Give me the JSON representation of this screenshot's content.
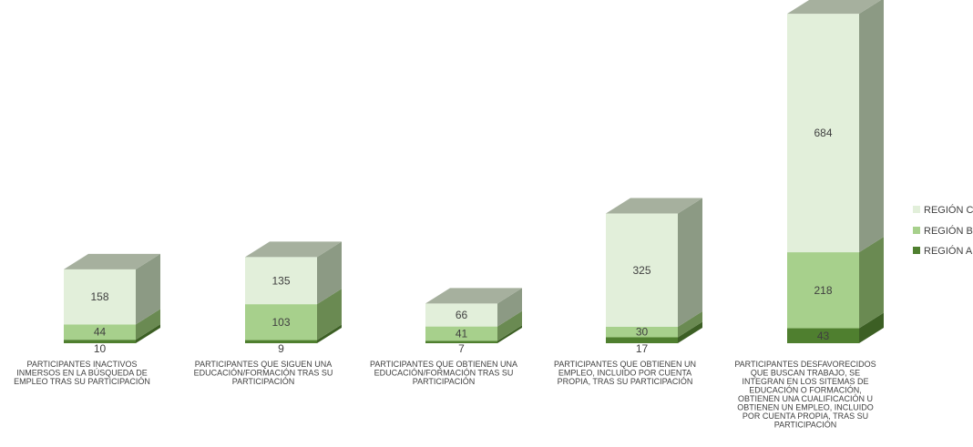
{
  "chart_data": {
    "type": "bar",
    "stacked": true,
    "style": "3d-column",
    "title": "",
    "xlabel": "",
    "ylabel": "",
    "grid": false,
    "legend_position": "right",
    "categories": [
      "PARTICIPANTES INACTIVOS INMERSOS EN LA BÚSQUEDA DE EMPLEO TRAS SU PARTICIPACIÓN",
      "PARTICIPANTES QUE SIGUEN UNA EDUCACIÓN/FORMACIÓN TRAS SU PARTICIPACIÓN",
      "PARTICIPANTES QUE OBTIENEN UNA EDUCACIÓN/FORMACIÓN TRAS SU PARTICIPACIÓN",
      "PARTICIPANTES QUE OBTIENEN UN EMPLEO, INCLUIDO POR CUENTA PROPIA, TRAS SU PARTICIPACIÓN",
      "PARTICIPANTES DESFAVORECIDOS QUE BUSCAN TRABAJO, SE INTEGRAN EN LOS SITEMAS DE EDUCACIÓN O FORMACIÓN, OBTIENEN UNA CUALIFICACIÓN U OBTIENEN UN EMPLEO, INCLUIDO POR CUENTA PROPIA, TRAS SU PARTICIPACIÓN"
    ],
    "category_label_lines": [
      [
        "PARTICIPANTES INACTIVOS",
        "INMERSOS EN LA BÚSQUEDA DE",
        "EMPLEO TRAS SU PARTICIPACIÓN"
      ],
      [
        "PARTICIPANTES QUE SIGUEN UNA",
        "EDUCACIÓN/FORMACIÓN TRAS SU",
        "PARTICIPACIÓN"
      ],
      [
        "PARTICIPANTES QUE OBTIENEN UNA",
        "EDUCACIÓN/FORMACIÓN TRAS SU",
        "PARTICIPACIÓN"
      ],
      [
        "PARTICIPANTES QUE OBTIENEN UN",
        "EMPLEO, INCLUIDO POR CUENTA",
        "PROPIA, TRAS SU PARTICIPACIÓN"
      ],
      [
        "PARTICIPANTES DESFAVORECIDOS",
        "QUE BUSCAN TRABAJO, SE",
        "INTEGRAN EN LOS SITEMAS DE",
        "EDUCACIÓN O FORMACIÓN,",
        "OBTIENEN UNA CUALIFICACIÓN U",
        "OBTIENEN UN EMPLEO, INCLUIDO",
        "POR CUENTA PROPIA, TRAS SU",
        "PARTICIPACIÓN"
      ]
    ],
    "series": [
      {
        "name": "REGIÓN A",
        "values": [
          10,
          9,
          7,
          17,
          43
        ],
        "color": "#4f7f2f",
        "side_color": "#3c5f24"
      },
      {
        "name": "REGIÓN B",
        "values": [
          44,
          103,
          41,
          30,
          218
        ],
        "color": "#a7d08c",
        "side_color": "#6a8a52"
      },
      {
        "name": "REGIÓN C",
        "values": [
          158,
          135,
          66,
          325,
          684
        ],
        "color": "#e2efda",
        "side_color": "#8c9a84"
      }
    ],
    "top_color": "#a6b09e",
    "legend_order": [
      "REGIÓN C",
      "REGIÓN B",
      "REGIÓN A"
    ]
  }
}
